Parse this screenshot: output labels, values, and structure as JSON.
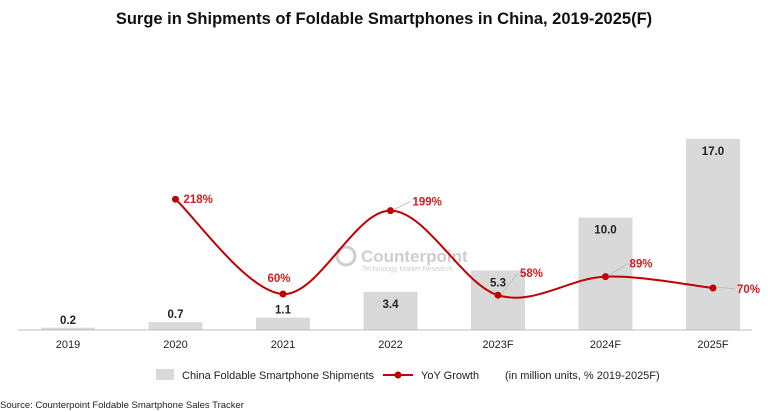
{
  "chart_data": {
    "type": "bar",
    "title": "Surge in Shipments of Foldable Smartphones in China, 2019-2025(F)",
    "categories": [
      "2019",
      "2020",
      "2021",
      "2022",
      "2023F",
      "2024F",
      "2025F"
    ],
    "series": [
      {
        "name": "China Foldable Smartphone Shipments",
        "type": "bar",
        "values": [
          0.2,
          0.7,
          1.1,
          3.4,
          5.3,
          10.0,
          17.0
        ],
        "labels": [
          "0.2",
          "0.7",
          "1.1",
          "3.4",
          "5.3",
          "10.0",
          "17.0"
        ],
        "color": "#d9d9d9"
      },
      {
        "name": "YoY Growth",
        "type": "line",
        "values": [
          null,
          218,
          60,
          199,
          58,
          89,
          70
        ],
        "labels": [
          "",
          "218%",
          "60%",
          "199%",
          "58%",
          "89%",
          "70%"
        ],
        "color": "#c00000"
      }
    ],
    "legend_note": "(in million units, % 2019-2025F)",
    "legend_position": "bottom",
    "grid": false,
    "ylim": [
      0,
      17.0
    ],
    "y2lim": [
      0,
      320
    ]
  },
  "watermark": {
    "name": "Counterpoint",
    "tagline": "Technology Market Research"
  },
  "source": "Source: Counterpoint Foldable Smartphone Sales Tracker"
}
